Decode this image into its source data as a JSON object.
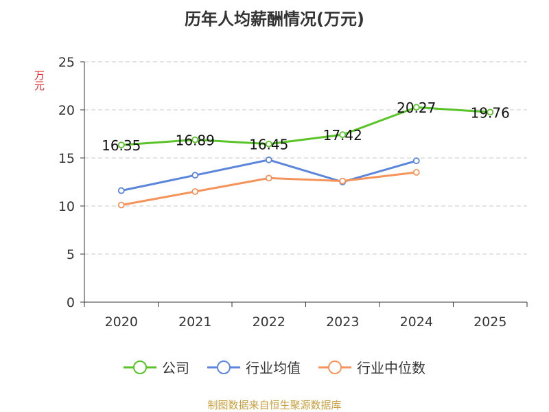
{
  "chart_data": {
    "type": "line",
    "title": "历年人均薪酬情况(万元)",
    "ylabel": "万元",
    "xlabel": "",
    "categories": [
      "2020",
      "2021",
      "2022",
      "2023",
      "2024",
      "2025"
    ],
    "ylim": [
      0,
      25
    ],
    "yticks": [
      "0",
      "5",
      "10",
      "15",
      "20",
      "25"
    ],
    "grid": "horizontal-dashed",
    "legend_position": "bottom",
    "series": [
      {
        "name": "公司",
        "color": "#5ac328",
        "values": [
          16.35,
          16.89,
          16.45,
          17.42,
          20.27,
          19.76
        ],
        "labels": [
          "16.35",
          "16.89",
          "16.45",
          "17.42",
          "20.27",
          "19.76"
        ]
      },
      {
        "name": "行业均值",
        "color": "#5b86db",
        "values": [
          11.6,
          13.2,
          14.8,
          12.5,
          14.7,
          null
        ]
      },
      {
        "name": "行业中位数",
        "color": "#f5935b",
        "values": [
          10.1,
          11.5,
          12.9,
          12.6,
          13.5,
          null
        ]
      }
    ]
  },
  "source": "制图数据来自恒生聚源数据库"
}
